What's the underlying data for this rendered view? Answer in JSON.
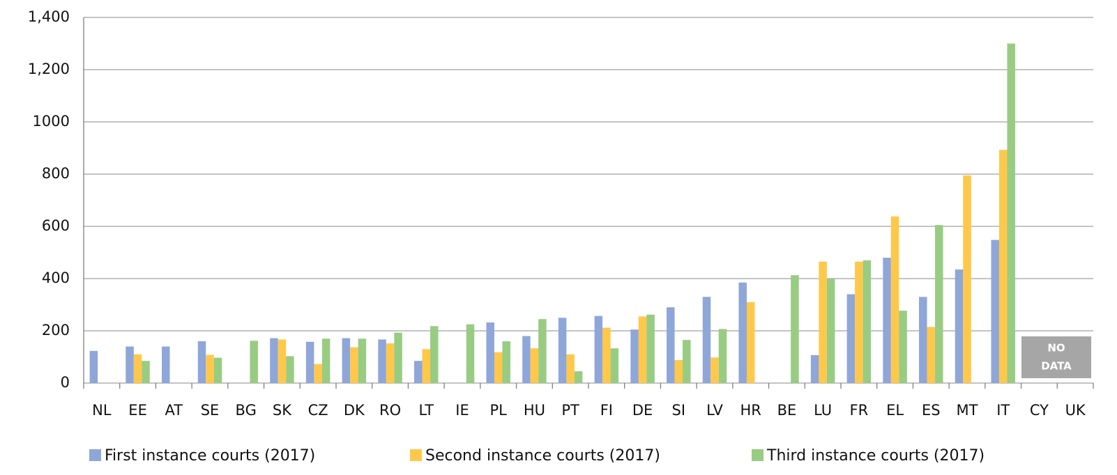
{
  "chart_data": {
    "type": "bar",
    "categories": [
      "NL",
      "EE",
      "AT",
      "SE",
      "BG",
      "SK",
      "CZ",
      "DK",
      "RO",
      "LT",
      "IE",
      "PL",
      "HU",
      "PT",
      "FI",
      "DE",
      "SI",
      "LV",
      "HR",
      "BE",
      "LU",
      "FR",
      "EL",
      "ES",
      "MT",
      "IT",
      "CY",
      "UK"
    ],
    "series": [
      {
        "name": "First instance courts (2017)",
        "color": "#8fa6d8",
        "values": [
          123,
          140,
          140,
          160,
          null,
          172,
          158,
          172,
          167,
          85,
          null,
          232,
          180,
          250,
          257,
          205,
          290,
          330,
          385,
          null,
          107,
          340,
          480,
          330,
          435,
          548,
          null,
          null
        ]
      },
      {
        "name": "Second instance courts (2017)",
        "color": "#ffc84a",
        "values": [
          null,
          110,
          null,
          108,
          null,
          167,
          73,
          137,
          152,
          130,
          null,
          118,
          133,
          110,
          212,
          255,
          88,
          98,
          310,
          null,
          465,
          465,
          638,
          215,
          795,
          893,
          null,
          null
        ]
      },
      {
        "name": "Third instance courts (2017)",
        "color": "#98cc82",
        "values": [
          null,
          85,
          null,
          97,
          162,
          103,
          170,
          170,
          193,
          218,
          225,
          160,
          245,
          45,
          133,
          262,
          165,
          207,
          null,
          413,
          398,
          470,
          277,
          605,
          null,
          1300,
          null,
          null
        ]
      }
    ],
    "ylim": [
      0,
      1400
    ],
    "yticks": [
      0,
      200,
      400,
      600,
      800,
      1000,
      {
        "value": 1200,
        "label": "1,200"
      },
      {
        "value": 1400,
        "label": "1,400"
      }
    ],
    "grid": true,
    "legend": "bottom",
    "annotation_lines": [
      "NO",
      "DATA"
    ]
  }
}
